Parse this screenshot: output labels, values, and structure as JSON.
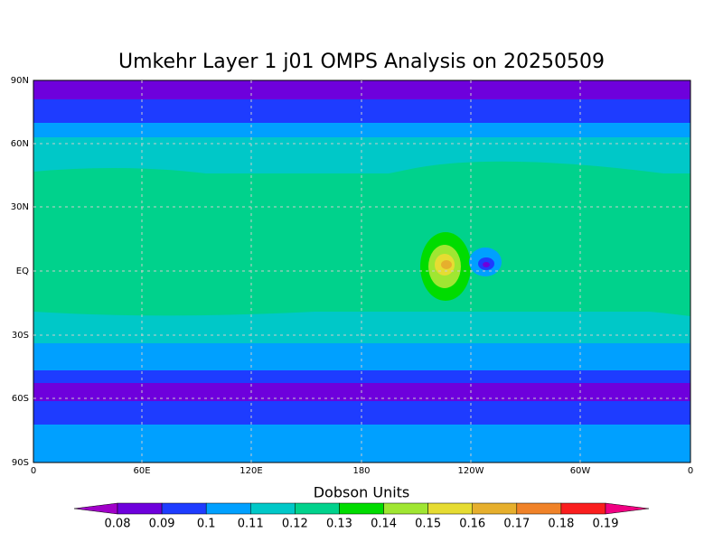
{
  "title": "Umkehr Layer 1 j01 OMPS Analysis on 20250509",
  "lat_labels": [
    "90N",
    "60N",
    "30N",
    "EQ",
    "30S",
    "60S",
    "90S"
  ],
  "lon_labels": [
    "0",
    "60E",
    "120E",
    "180",
    "120W",
    "60W",
    "0"
  ],
  "colorbar": {
    "title": "Dobson Units",
    "labels": [
      0.08,
      0.09,
      0.1,
      0.11,
      0.12,
      0.13,
      0.14,
      0.15,
      0.16,
      0.17,
      0.18,
      0.19
    ],
    "colors": [
      "#a000c8",
      "#6e00dc",
      "#1e3cff",
      "#00a0ff",
      "#00c8c8",
      "#00d28c",
      "#00dc00",
      "#a0e632",
      "#e6dc32",
      "#e6af2d",
      "#f08228",
      "#fa1e1e",
      "#f00082"
    ]
  }
}
